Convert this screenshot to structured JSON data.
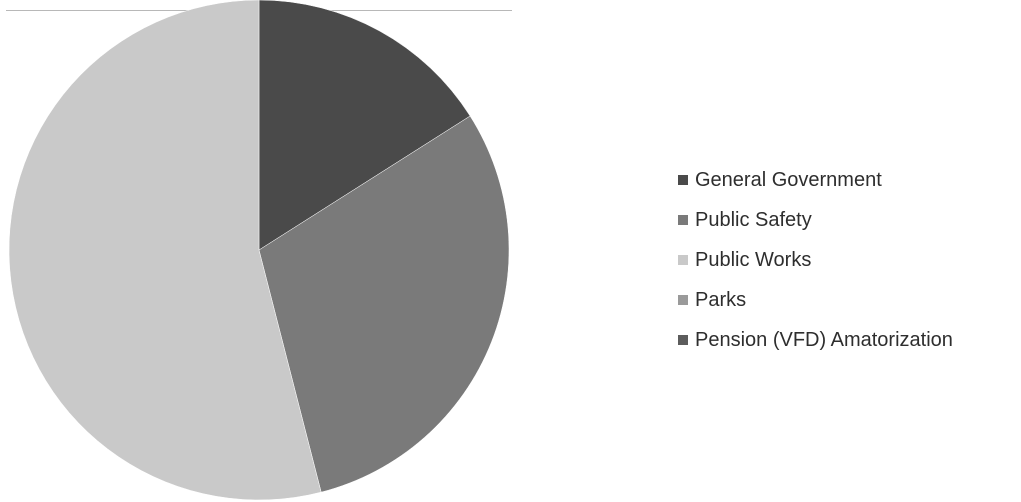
{
  "chart_data": {
    "type": "pie",
    "categories": [
      "General Government",
      "Public Safety",
      "Public Works",
      "Parks",
      "Pension (VFD) Amatorization"
    ],
    "values": [
      16,
      30,
      54,
      0,
      0
    ],
    "colors": [
      "#4a4a4a",
      "#7a7a7a",
      "#c9c9c9",
      "#9a9a9a",
      "#5c5c5c"
    ],
    "legend_position": "right",
    "start_angle_deg": 0,
    "direction": "clockwise"
  }
}
